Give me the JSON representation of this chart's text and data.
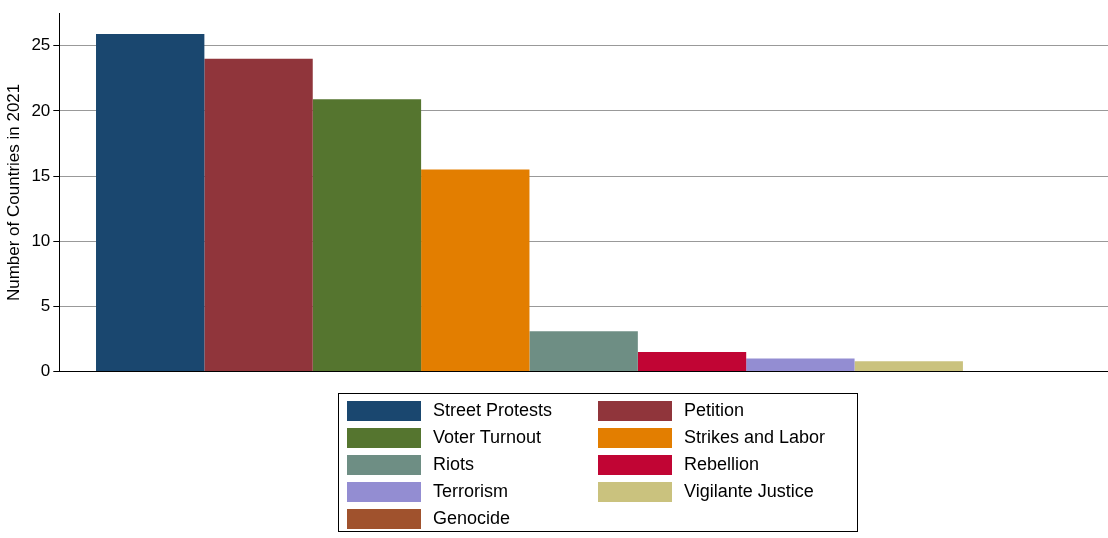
{
  "chart_data": {
    "type": "bar",
    "ylabel": "Number of Countries in 2021",
    "categories": [
      null
    ],
    "series": [
      {
        "name": "Street Protests",
        "color": "#1a476f",
        "values": [
          25.9
        ]
      },
      {
        "name": "Petition",
        "color": "#90353b",
        "values": [
          24.0
        ]
      },
      {
        "name": "Voter Turnout",
        "color": "#55752f",
        "values": [
          20.9
        ]
      },
      {
        "name": "Strikes and Labor",
        "color": "#e37e00",
        "values": [
          15.5
        ]
      },
      {
        "name": "Riots",
        "color": "#6e8e84",
        "values": [
          3.1
        ]
      },
      {
        "name": "Rebellion",
        "color": "#c10534",
        "values": [
          1.5
        ]
      },
      {
        "name": "Terrorism",
        "color": "#938dd2",
        "values": [
          1.0
        ]
      },
      {
        "name": "Vigilante Justice",
        "color": "#cac27e",
        "values": [
          0.8
        ]
      },
      {
        "name": "Genocide",
        "color": "#a0522d",
        "values": [
          0
        ]
      }
    ],
    "ylim": [
      0,
      27.5
    ],
    "yticks": [
      0,
      5,
      10,
      15,
      20,
      25
    ],
    "grid": "y",
    "legend": "bottom"
  }
}
